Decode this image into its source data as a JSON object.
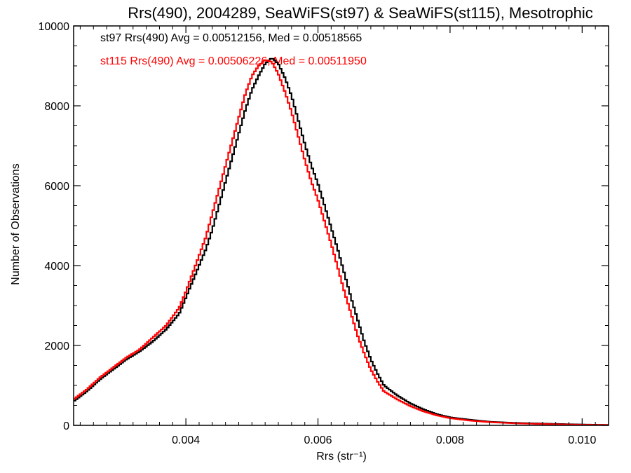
{
  "chart_data": {
    "type": "line",
    "title": "Rrs(490), 2004289, SeaWiFS(st97) & SeaWiFS(st115), Mesotrophic",
    "xlabel": "Rrs (str⁻¹)",
    "ylabel": "Number of Observations",
    "xlim": [
      0.0023,
      0.0104
    ],
    "ylim": [
      0,
      10000
    ],
    "xticks": [
      "0.004",
      "0.006",
      "0.008",
      "0.010"
    ],
    "xtick_values": [
      0.004,
      0.006,
      0.008,
      0.01
    ],
    "yticks": [
      "0",
      "2000",
      "4000",
      "6000",
      "8000",
      "10000"
    ],
    "ytick_values": [
      0,
      2000,
      4000,
      6000,
      8000,
      10000
    ],
    "grid": false,
    "style": "histogram-step",
    "legend_placement": "top-left",
    "series": [
      {
        "name": "st97 Rrs(490) Avg = 0.00512156, Med = 0.00518565",
        "color": "#000000",
        "x": [
          0.0023,
          0.0025,
          0.0027,
          0.0029,
          0.0031,
          0.0033,
          0.0035,
          0.0037,
          0.0039,
          0.004,
          0.0041,
          0.0042,
          0.0043,
          0.0044,
          0.0045,
          0.0046,
          0.0047,
          0.0048,
          0.0049,
          0.005,
          0.0051,
          0.0052,
          0.0053,
          0.0054,
          0.0055,
          0.0056,
          0.0057,
          0.0058,
          0.0059,
          0.006,
          0.0061,
          0.0062,
          0.0063,
          0.0064,
          0.0065,
          0.0066,
          0.0067,
          0.0068,
          0.0069,
          0.007,
          0.0072,
          0.0074,
          0.0076,
          0.0078,
          0.008,
          0.0083,
          0.0086,
          0.009,
          0.0095,
          0.01,
          0.0104
        ],
        "values": [
          600,
          850,
          1150,
          1400,
          1650,
          1850,
          2100,
          2400,
          2800,
          3200,
          3600,
          4000,
          4400,
          4900,
          5500,
          6100,
          6700,
          7300,
          7900,
          8400,
          8750,
          9050,
          9200,
          9050,
          8700,
          8250,
          7650,
          7050,
          6500,
          6050,
          5500,
          4950,
          4400,
          3800,
          3200,
          2650,
          2100,
          1650,
          1300,
          1000,
          750,
          550,
          400,
          280,
          200,
          140,
          90,
          60,
          40,
          20,
          10
        ]
      },
      {
        "name": "st115 Rrs(490) Avg = 0.00506226, Med = 0.00511950",
        "color": "#ff0000",
        "x": [
          0.0023,
          0.0025,
          0.0027,
          0.0029,
          0.0031,
          0.0033,
          0.0035,
          0.0037,
          0.0039,
          0.004,
          0.0041,
          0.0042,
          0.0043,
          0.0044,
          0.0045,
          0.0046,
          0.0047,
          0.0048,
          0.0049,
          0.005,
          0.0051,
          0.0052,
          0.0053,
          0.0054,
          0.0055,
          0.0056,
          0.0057,
          0.0058,
          0.0059,
          0.006,
          0.0061,
          0.0062,
          0.0063,
          0.0064,
          0.0065,
          0.0066,
          0.0067,
          0.0068,
          0.0069,
          0.007,
          0.0072,
          0.0074,
          0.0076,
          0.0078,
          0.008,
          0.0083,
          0.0086,
          0.009,
          0.0095,
          0.01,
          0.0104
        ],
        "values": [
          650,
          900,
          1200,
          1450,
          1700,
          1900,
          2200,
          2500,
          2950,
          3350,
          3800,
          4250,
          4700,
          5300,
          5900,
          6500,
          7100,
          7700,
          8300,
          8750,
          9000,
          9150,
          9100,
          8800,
          8350,
          7850,
          7250,
          6650,
          6100,
          5650,
          5100,
          4550,
          3950,
          3350,
          2800,
          2250,
          1800,
          1400,
          1100,
          850,
          650,
          480,
          350,
          250,
          180,
          120,
          80,
          50,
          30,
          15,
          8
        ]
      }
    ]
  }
}
